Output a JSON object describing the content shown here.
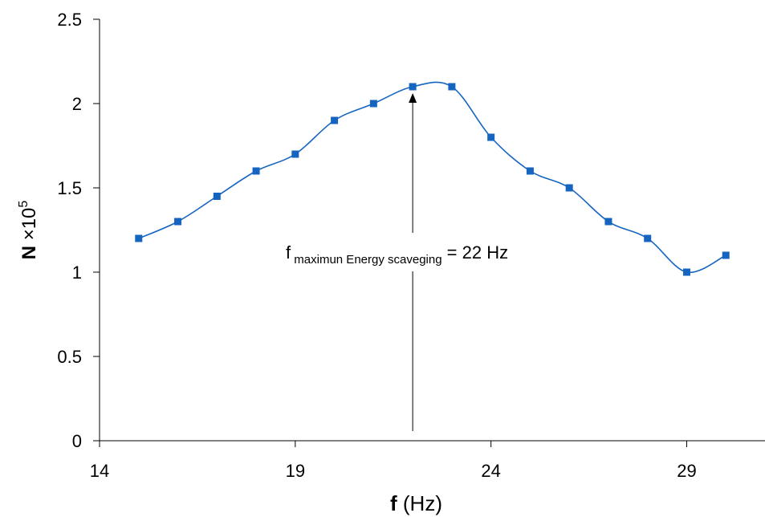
{
  "chart_data": {
    "type": "scatter",
    "x": [
      15,
      16,
      17,
      18,
      19,
      20,
      21,
      22,
      23,
      24,
      25,
      26,
      27,
      28,
      29,
      30
    ],
    "series": [
      {
        "values": [
          1.2,
          1.3,
          1.45,
          1.6,
          1.7,
          1.9,
          2.0,
          2.1,
          2.1,
          1.8,
          1.6,
          1.5,
          1.3,
          1.2,
          1.0,
          1.1
        ],
        "color": "#1565C0",
        "marker": "square",
        "line": "smooth"
      }
    ],
    "xlim": [
      14,
      31
    ],
    "ylim": [
      0,
      2.5
    ],
    "xticks": [
      14,
      19,
      24,
      29
    ],
    "yticks": [
      0,
      0.5,
      1,
      1.5,
      2,
      2.5
    ],
    "xtick_labels": [
      "14",
      "19",
      "24",
      "29"
    ],
    "ytick_labels": [
      "0",
      "0.5",
      "1",
      "1.5",
      "2",
      "2.5"
    ],
    "xlabel": {
      "bold": "f",
      "rest": " (Hz)"
    },
    "ylabel": {
      "bold": "N",
      "rest": " ×10",
      "sup": "5"
    },
    "annotation": {
      "x": 22,
      "y": 2.1,
      "label_prefix": "f",
      "label_sub": " maximun Energy scaveging",
      "label_suffix": " = 22 Hz"
    },
    "grid": false,
    "legend": "none"
  }
}
